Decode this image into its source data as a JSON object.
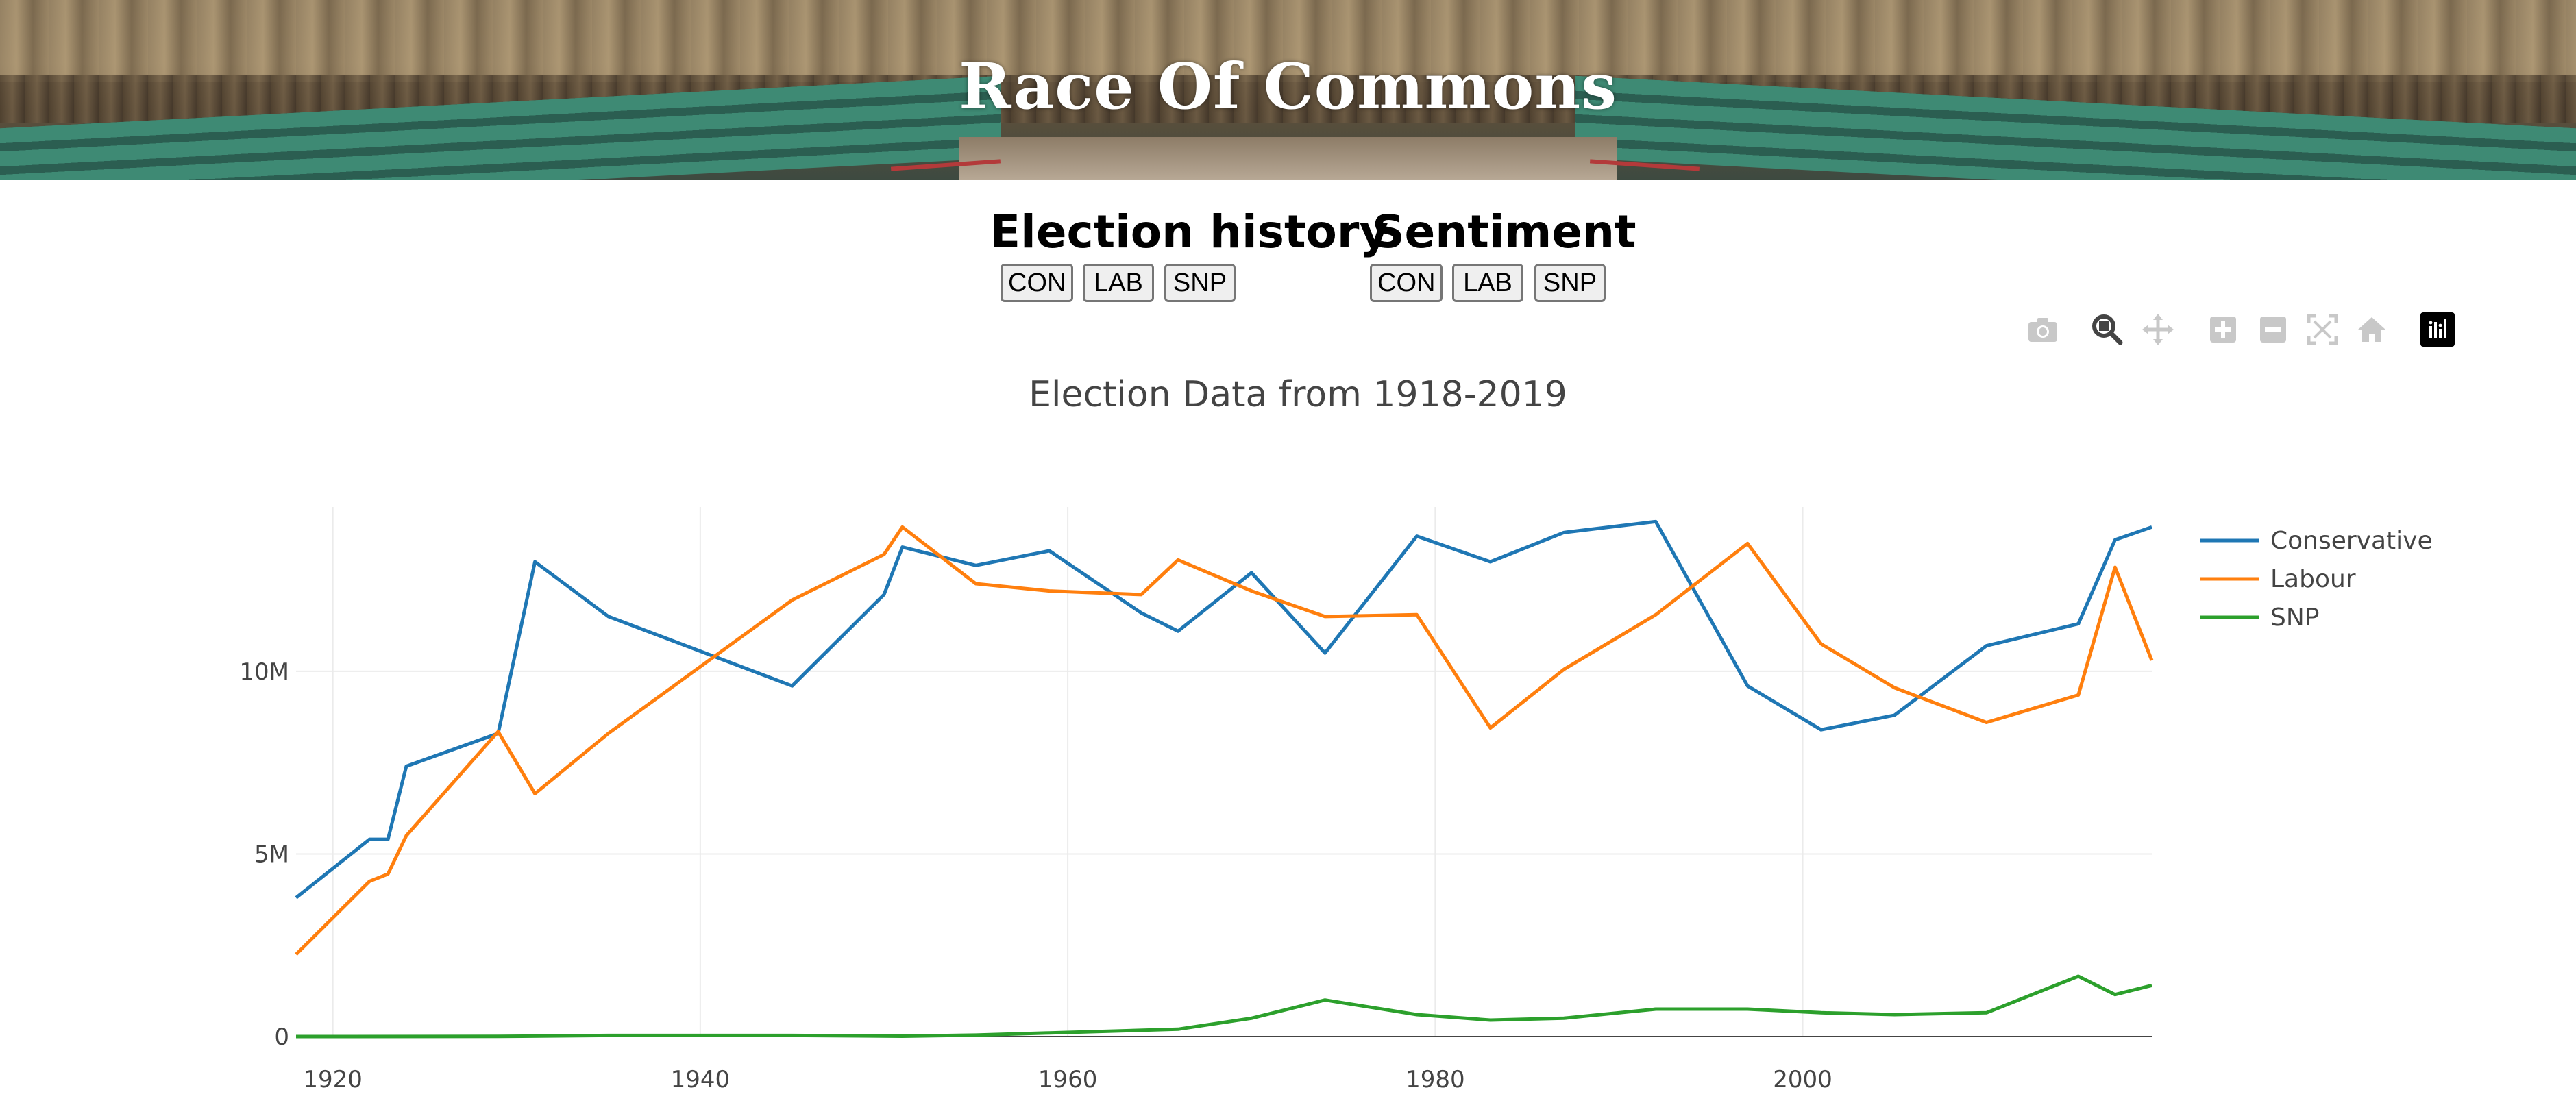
{
  "header": {
    "title": "Race Of Commons"
  },
  "election_history": {
    "title": "Election history",
    "buttons": [
      "CON",
      "LAB",
      "SNP"
    ]
  },
  "sentiment": {
    "title": "Sentiment",
    "buttons": [
      "CON",
      "LAB",
      "SNP"
    ]
  },
  "modebar": {
    "icons": [
      "camera-icon",
      "zoom-icon",
      "pan-icon",
      "zoom-in-icon",
      "zoom-out-icon",
      "autoscale-icon",
      "reset-axes-icon",
      "plotly-logo-icon"
    ]
  },
  "chart_data": {
    "type": "line",
    "title": "Election Data from 1918-2019",
    "xlabel": "",
    "ylabel": "",
    "xlim": [
      1918,
      2019
    ],
    "ylim": [
      0,
      14500000
    ],
    "x_ticks": [
      1920,
      1940,
      1960,
      1980,
      2000
    ],
    "x_tick_labels": [
      "1920",
      "1940",
      "1960",
      "1980",
      "2000"
    ],
    "y_ticks": [
      0,
      5000000,
      10000000
    ],
    "y_tick_labels": [
      "0",
      "5M",
      "10M"
    ],
    "grid": true,
    "legend_position": "top-right",
    "series": [
      {
        "name": "Conservative",
        "color": "#1f77b4",
        "x": [
          1918,
          1922,
          1923,
          1924,
          1929,
          1931,
          1935,
          1945,
          1950,
          1951,
          1955,
          1959,
          1964,
          1966,
          1970,
          1974,
          1979,
          1983,
          1987,
          1992,
          1997,
          2001,
          2005,
          2010,
          2015,
          2017,
          2019
        ],
        "y": [
          3800000,
          5400000,
          5400000,
          7400000,
          8300000,
          13000000,
          11500000,
          9600000,
          12100000,
          13400000,
          12900000,
          13300000,
          11600000,
          11100000,
          12700000,
          10500000,
          13700000,
          13000000,
          13800000,
          14100000,
          9600000,
          8400000,
          8800000,
          10700000,
          11300000,
          13600000,
          13950000
        ]
      },
      {
        "name": "Labour",
        "color": "#ff7f0e",
        "x": [
          1918,
          1922,
          1923,
          1924,
          1929,
          1931,
          1935,
          1945,
          1950,
          1951,
          1955,
          1959,
          1964,
          1966,
          1970,
          1974,
          1979,
          1983,
          1987,
          1992,
          1997,
          2001,
          2005,
          2010,
          2015,
          2017,
          2019
        ],
        "y": [
          2250000,
          4250000,
          4450000,
          5500000,
          8350000,
          6650000,
          8300000,
          11950000,
          13200000,
          13950000,
          12400000,
          12200000,
          12100000,
          13050000,
          12200000,
          11500000,
          11550000,
          8450000,
          10050000,
          11550000,
          13500000,
          10750000,
          9550000,
          8600000,
          9350000,
          12850000,
          10300000
        ]
      },
      {
        "name": "SNP",
        "color": "#2ca02c",
        "x": [
          1918,
          1929,
          1935,
          1945,
          1951,
          1955,
          1959,
          1966,
          1970,
          1974,
          1979,
          1983,
          1987,
          1992,
          1997,
          2001,
          2005,
          2010,
          2015,
          2017,
          2019
        ],
        "y": [
          0,
          3000,
          30000,
          30000,
          10000,
          40000,
          100000,
          200000,
          500000,
          1000000,
          600000,
          450000,
          500000,
          750000,
          750000,
          650000,
          600000,
          650000,
          1650000,
          1150000,
          1400000
        ]
      }
    ]
  }
}
